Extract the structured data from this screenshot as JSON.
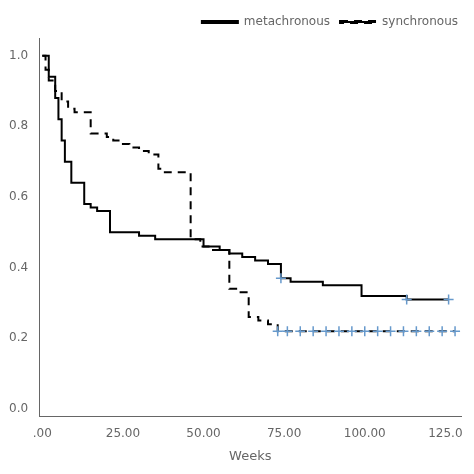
{
  "chart_data": {
    "type": "step",
    "xlabel": "Weeks",
    "xlim": [
      -1,
      130
    ],
    "ylim": [
      -0.02,
      1.05
    ],
    "xticks": [
      {
        "value": 0,
        "label": ".00"
      },
      {
        "value": 25,
        "label": "25.00"
      },
      {
        "value": 50,
        "label": "50.00"
      },
      {
        "value": 75,
        "label": "75.00"
      },
      {
        "value": 100,
        "label": "100.00"
      },
      {
        "value": 125,
        "label": "125.0"
      }
    ],
    "yticks": [
      {
        "value": 0.0,
        "label": "0.0"
      },
      0.2,
      0.4,
      0.6,
      0.8,
      {
        "value": 1.0,
        "label": "1.0"
      }
    ],
    "grid": false,
    "legend": "upper right",
    "series": [
      {
        "name": "metachronous",
        "color": "#000000",
        "line_style": "solid",
        "x": [
          0,
          2,
          4,
          5,
          6,
          7,
          9,
          11,
          13,
          15,
          17,
          19,
          21,
          26,
          30,
          35,
          40,
          44,
          47,
          50,
          55,
          58,
          62,
          66,
          70,
          74,
          77,
          81,
          87,
          93,
          99,
          106,
          113,
          120,
          126
        ],
        "values": [
          1.0,
          0.94,
          0.88,
          0.82,
          0.76,
          0.7,
          0.64,
          0.64,
          0.58,
          0.57,
          0.56,
          0.56,
          0.5,
          0.5,
          0.49,
          0.48,
          0.48,
          0.48,
          0.48,
          0.46,
          0.45,
          0.44,
          0.43,
          0.42,
          0.41,
          0.37,
          0.36,
          0.36,
          0.35,
          0.35,
          0.32,
          0.32,
          0.31,
          0.31,
          0.31
        ],
        "censored": {
          "x": [
            74,
            113,
            126
          ],
          "values": [
            0.37,
            0.31,
            0.31
          ],
          "color": "#6699cc",
          "marker": "plus"
        }
      },
      {
        "name": "synchronous",
        "color": "#000000",
        "line_style": "dashed",
        "x": [
          0,
          1,
          2,
          4,
          6,
          8,
          10,
          12,
          15,
          18,
          20,
          22,
          25,
          27,
          30,
          33,
          36,
          38,
          40,
          43,
          46,
          49,
          52,
          55,
          58,
          61,
          64,
          67,
          70,
          73,
          76,
          80,
          84,
          88,
          92,
          96,
          100,
          104,
          108,
          112,
          116,
          120,
          124,
          128
        ],
        "values": [
          1.0,
          0.96,
          0.93,
          0.9,
          0.87,
          0.85,
          0.84,
          0.84,
          0.78,
          0.78,
          0.77,
          0.76,
          0.75,
          0.74,
          0.73,
          0.72,
          0.68,
          0.67,
          0.67,
          0.67,
          0.48,
          0.46,
          0.45,
          0.45,
          0.34,
          0.33,
          0.26,
          0.25,
          0.24,
          0.22,
          0.22,
          0.22,
          0.22,
          0.22,
          0.22,
          0.22,
          0.22,
          0.22,
          0.22,
          0.22,
          0.22,
          0.22,
          0.22,
          0.22
        ],
        "censored": {
          "x": [
            73,
            76,
            80,
            84,
            88,
            92,
            96,
            100,
            104,
            108,
            112,
            116,
            120,
            124,
            128
          ],
          "values": [
            0.22,
            0.22,
            0.22,
            0.22,
            0.22,
            0.22,
            0.22,
            0.22,
            0.22,
            0.22,
            0.22,
            0.22,
            0.22,
            0.22,
            0.22
          ],
          "color": "#6699cc",
          "marker": "plus"
        }
      }
    ]
  }
}
